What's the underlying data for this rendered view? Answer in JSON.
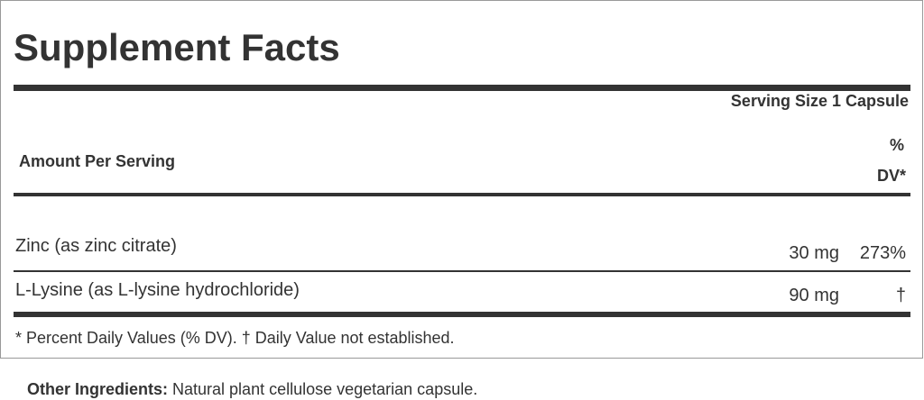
{
  "label": {
    "title": "Supplement Facts",
    "serving_size": "Serving Size 1 Capsule",
    "amount_per_serving": "Amount Per Serving",
    "dv_header_line1": "%",
    "dv_header_line2": "DV*",
    "rows": [
      {
        "name": "Zinc (as zinc citrate)",
        "amount": "30 mg",
        "dv": "273%"
      },
      {
        "name": "L-Lysine (as L-lysine hydrochloride)",
        "amount": "90 mg",
        "dv": "†"
      }
    ],
    "footnote": "* Percent Daily Values (% DV). † Daily Value not established."
  },
  "other_ingredients": {
    "label": "Other Ingredients:",
    "text": " Natural plant cellulose vegetarian capsule."
  }
}
